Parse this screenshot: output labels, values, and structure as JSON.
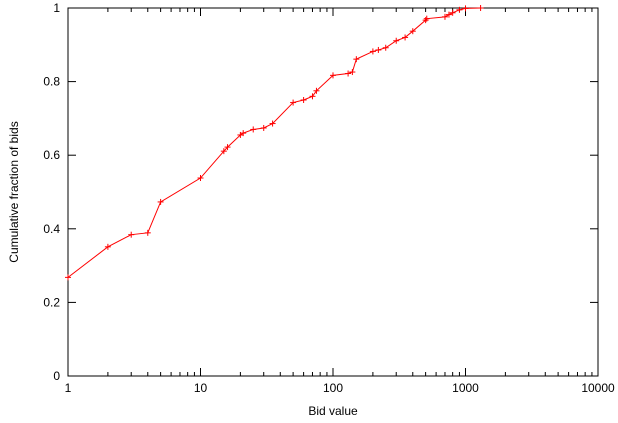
{
  "chart_data": {
    "type": "line",
    "title": "",
    "xlabel": "Bid value",
    "ylabel": "Cumulative fraction of bids",
    "xscale": "log",
    "xlim": [
      1,
      10000
    ],
    "ylim": [
      0,
      1
    ],
    "xticks": [
      1,
      10,
      100,
      1000,
      10000
    ],
    "xtick_labels": [
      "1",
      "10",
      "100",
      "1000",
      "10000"
    ],
    "yticks": [
      0,
      0.2,
      0.4,
      0.6,
      0.8,
      1
    ],
    "ytick_labels": [
      "0",
      "0.2",
      "0.4",
      "0.6",
      "0.8",
      "1"
    ],
    "grid": false,
    "legend": "none",
    "series": [
      {
        "color": "#ff0000",
        "marker": "plus",
        "points": [
          [
            1,
            0.268
          ],
          [
            2,
            0.351
          ],
          [
            3,
            0.384
          ],
          [
            4,
            0.389
          ],
          [
            5,
            0.473
          ],
          [
            10,
            0.538
          ],
          [
            15,
            0.611
          ],
          [
            16,
            0.622
          ],
          [
            20,
            0.655
          ],
          [
            21,
            0.66
          ],
          [
            25,
            0.67
          ],
          [
            30,
            0.674
          ],
          [
            35,
            0.686
          ],
          [
            50,
            0.743
          ],
          [
            60,
            0.75
          ],
          [
            70,
            0.76
          ],
          [
            75,
            0.775
          ],
          [
            100,
            0.817
          ],
          [
            130,
            0.822
          ],
          [
            140,
            0.826
          ],
          [
            150,
            0.861
          ],
          [
            200,
            0.882
          ],
          [
            220,
            0.886
          ],
          [
            250,
            0.892
          ],
          [
            300,
            0.911
          ],
          [
            350,
            0.92
          ],
          [
            400,
            0.937
          ],
          [
            500,
            0.967
          ],
          [
            510,
            0.971
          ],
          [
            700,
            0.976
          ],
          [
            750,
            0.982
          ],
          [
            800,
            0.987
          ],
          [
            900,
            0.995
          ],
          [
            1000,
            0.999
          ],
          [
            1300,
            1.0
          ]
        ]
      }
    ]
  }
}
